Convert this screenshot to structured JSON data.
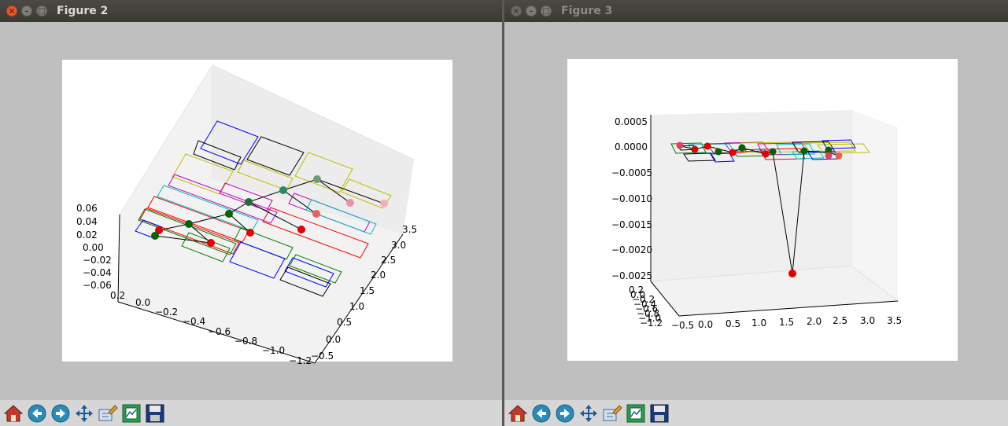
{
  "windows": [
    {
      "title": "Figure 2",
      "axes": {
        "z_ticks": [
          "0.06",
          "0.04",
          "0.02",
          "0.00",
          "−0.02",
          "−0.04",
          "−0.06"
        ],
        "x_ticks": [
          "0.2",
          "0.0",
          "−0.2",
          "−0.4",
          "−0.6",
          "−0.8",
          "−1.0",
          "−1.2"
        ],
        "y_ticks": [
          "3.5",
          "3.0",
          "2.5",
          "2.0",
          "1.5",
          "1.0",
          "0.5",
          "0.0",
          "−0.5"
        ]
      }
    },
    {
      "title": "Figure 3",
      "axes": {
        "z_ticks": [
          "0.0005",
          "0.0000",
          "−0.0005",
          "−0.0010",
          "−0.0015",
          "−0.0020",
          "−0.0025"
        ],
        "x_ticks": [
          "−0.5",
          "0.0",
          "0.5",
          "1.0",
          "1.5",
          "2.0",
          "2.5",
          "3.0",
          "3.5"
        ],
        "y_ticks": [
          "0.2",
          "0.0",
          "−0.2",
          "−0.4",
          "−0.6",
          "−0.8",
          "−1.0",
          "−1.2"
        ]
      }
    }
  ],
  "toolbar_icons": [
    "home-icon",
    "back-arrow-icon",
    "forward-arrow-icon",
    "pan-icon",
    "zoom-icon",
    "configure-subplots-icon",
    "save-icon"
  ],
  "colors": {
    "blue": "#0000ff",
    "green": "#008000",
    "red": "#ff0000",
    "cyan": "#00bfbf",
    "magenta": "#bf00bf",
    "yellow": "#bfbf00",
    "black": "#000000"
  }
}
